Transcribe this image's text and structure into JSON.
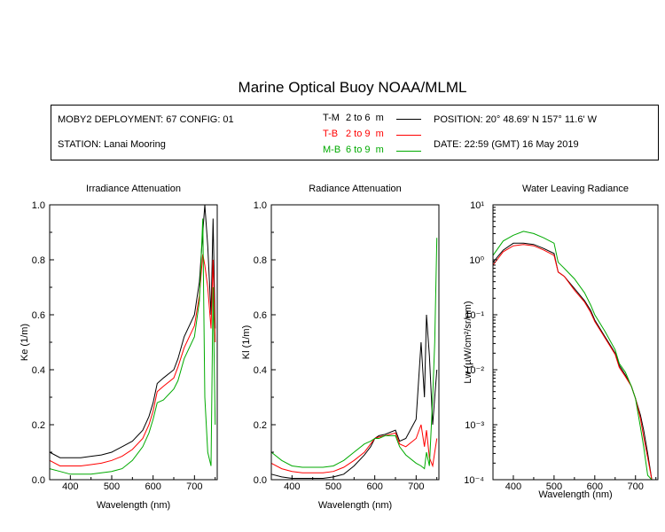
{
  "page": {
    "title": "Marine Optical Buoy NOAA/MLML"
  },
  "info": {
    "deployment": "MOBY2 DEPLOYMENT: 67 CONFIG: 01",
    "station": "STATION: Lanai Mooring",
    "position": "POSITION: 20° 48.69' N   157° 11.6' W",
    "date": "DATE: 22:59 (GMT) 16 May 2019",
    "legend": [
      {
        "code": "T-M",
        "range": "2 to 6",
        "unit": "m",
        "color": "#000000"
      },
      {
        "code": "T-B",
        "range": "2 to 9",
        "unit": "m",
        "color": "#ff0000"
      },
      {
        "code": "M-B",
        "range": "6 to 9",
        "unit": "m",
        "color": "#00aa00"
      }
    ]
  },
  "chart_data": [
    {
      "type": "line",
      "title": "Irradiance Attenuation",
      "xlabel": "Wavelength (nm)",
      "ylabel": "Ke  (1/m)",
      "xlim": [
        350,
        755
      ],
      "ylim": [
        0,
        1.0
      ],
      "xticks": [
        400,
        500,
        600,
        700
      ],
      "yticks": [
        0.0,
        0.2,
        0.4,
        0.6,
        0.8,
        1.0
      ],
      "ytick_labels": [
        "0.0",
        "0.2",
        "0.4",
        "0.6",
        "0.8",
        "1.0"
      ],
      "x": [
        350,
        375,
        400,
        425,
        450,
        475,
        500,
        525,
        550,
        575,
        590,
        600,
        610,
        625,
        650,
        660,
        675,
        700,
        712,
        720,
        725,
        732,
        740,
        745,
        750
      ],
      "series": [
        {
          "name": "T-M",
          "color": "#000000",
          "values": [
            0.1,
            0.08,
            0.08,
            0.08,
            0.085,
            0.09,
            0.1,
            0.12,
            0.14,
            0.18,
            0.23,
            0.28,
            0.35,
            0.37,
            0.4,
            0.44,
            0.52,
            0.6,
            0.72,
            0.9,
            1.0,
            0.85,
            0.6,
            0.95,
            0.55
          ]
        },
        {
          "name": "T-B",
          "color": "#ff0000",
          "values": [
            0.07,
            0.05,
            0.05,
            0.05,
            0.055,
            0.06,
            0.07,
            0.085,
            0.11,
            0.15,
            0.2,
            0.25,
            0.32,
            0.34,
            0.37,
            0.41,
            0.48,
            0.56,
            0.67,
            0.82,
            0.78,
            0.7,
            0.55,
            0.8,
            0.5
          ]
        },
        {
          "name": "M-B",
          "color": "#00aa00",
          "values": [
            0.04,
            0.03,
            0.02,
            0.02,
            0.02,
            0.025,
            0.03,
            0.04,
            0.07,
            0.12,
            0.17,
            0.22,
            0.28,
            0.29,
            0.33,
            0.36,
            0.44,
            0.52,
            0.65,
            0.95,
            0.3,
            0.1,
            0.05,
            0.7,
            0.2
          ]
        }
      ]
    },
    {
      "type": "line",
      "title": "Radiance Attenuation",
      "xlabel": "Wavelength (nm)",
      "ylabel": "Kl  (1/m)",
      "xlim": [
        350,
        755
      ],
      "ylim": [
        0,
        1.0
      ],
      "xticks": [
        400,
        500,
        600,
        700
      ],
      "yticks": [
        0.0,
        0.2,
        0.4,
        0.6,
        0.8,
        1.0
      ],
      "ytick_labels": [
        "0.0",
        "0.2",
        "0.4",
        "0.6",
        "0.8",
        "1.0"
      ],
      "x": [
        350,
        375,
        400,
        425,
        450,
        475,
        500,
        525,
        550,
        575,
        590,
        600,
        610,
        625,
        650,
        660,
        675,
        700,
        712,
        720,
        725,
        732,
        740,
        745,
        750
      ],
      "series": [
        {
          "name": "T-M",
          "color": "#000000",
          "values": [
            0.02,
            0.01,
            0.005,
            0.005,
            0.005,
            0.005,
            0.01,
            0.02,
            0.05,
            0.09,
            0.12,
            0.15,
            0.16,
            0.165,
            0.18,
            0.14,
            0.15,
            0.22,
            0.5,
            0.3,
            0.6,
            0.45,
            0.2,
            0.3,
            0.4
          ]
        },
        {
          "name": "T-B",
          "color": "#ff0000",
          "values": [
            0.06,
            0.04,
            0.03,
            0.025,
            0.025,
            0.025,
            0.03,
            0.045,
            0.07,
            0.1,
            0.13,
            0.15,
            0.155,
            0.16,
            0.17,
            0.13,
            0.12,
            0.15,
            0.2,
            0.12,
            0.18,
            0.08,
            0.05,
            0.1,
            0.15
          ]
        },
        {
          "name": "M-B",
          "color": "#00aa00",
          "values": [
            0.1,
            0.07,
            0.05,
            0.045,
            0.045,
            0.045,
            0.05,
            0.07,
            0.1,
            0.13,
            0.14,
            0.15,
            0.15,
            0.16,
            0.16,
            0.12,
            0.09,
            0.06,
            0.05,
            0.04,
            0.1,
            0.05,
            0.3,
            0.5,
            0.88
          ]
        }
      ]
    },
    {
      "type": "line",
      "title": "Water Leaving Radiance",
      "xlabel": "Wavelength (nm)",
      "ylabel": "Lw  (µW/cm²/sr/nm)",
      "scale": "log",
      "xlim": [
        350,
        755
      ],
      "ylim": [
        0.0001,
        10
      ],
      "xticks": [
        400,
        500,
        600,
        700
      ],
      "yticks": [
        0.0001,
        0.001,
        0.01,
        0.1,
        1,
        10
      ],
      "ytick_labels": [
        "10⁻⁴",
        "10⁻³",
        "10⁻²",
        "10⁻¹",
        "10⁰",
        "10¹"
      ],
      "x": [
        350,
        375,
        400,
        425,
        450,
        475,
        500,
        510,
        525,
        550,
        575,
        590,
        600,
        625,
        650,
        660,
        675,
        690,
        700,
        712,
        720,
        730,
        740
      ],
      "series": [
        {
          "name": "T-M",
          "color": "#000000",
          "values": [
            0.9,
            1.5,
            2.0,
            2.0,
            1.9,
            1.6,
            1.3,
            0.6,
            0.5,
            0.3,
            0.18,
            0.12,
            0.08,
            0.04,
            0.02,
            0.012,
            0.008,
            0.005,
            0.003,
            0.0015,
            0.0008,
            0.0003,
            0.0001
          ]
        },
        {
          "name": "T-B",
          "color": "#ff0000",
          "values": [
            0.8,
            1.4,
            1.8,
            1.9,
            1.8,
            1.5,
            1.2,
            0.6,
            0.5,
            0.28,
            0.17,
            0.11,
            0.075,
            0.038,
            0.019,
            0.011,
            0.0075,
            0.005,
            0.003,
            0.0013,
            0.0006,
            0.00025,
            0.0001
          ]
        },
        {
          "name": "M-B",
          "color": "#00aa00",
          "values": [
            1.2,
            2.2,
            2.8,
            3.3,
            3.0,
            2.5,
            2.0,
            0.9,
            0.7,
            0.45,
            0.25,
            0.15,
            0.1,
            0.05,
            0.023,
            0.013,
            0.009,
            0.005,
            0.003,
            0.0009,
            0.0004,
            0.00012,
            0.0001
          ]
        }
      ]
    }
  ]
}
